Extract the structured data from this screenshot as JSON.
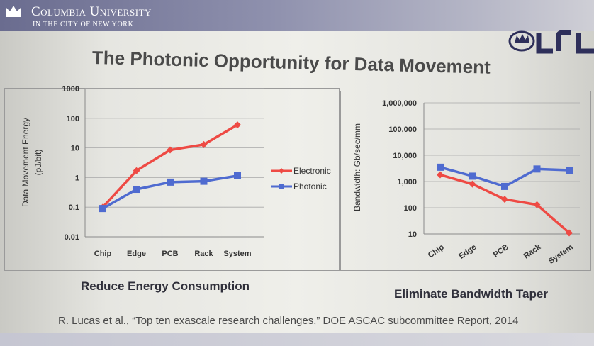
{
  "header": {
    "university": "Columbia University",
    "subtitle": "IN THE CITY OF NEW YORK",
    "lab_logo": "LRL"
  },
  "slide_title": "The Photonic Opportunity for Data Movement",
  "colors": {
    "electronic": "#ee4a44",
    "photonic": "#4f6bd0",
    "header_bar": "#7a7c9c"
  },
  "chart_data": [
    {
      "type": "line",
      "title": "",
      "xlabel": "",
      "ylabel": "Data Movement Energy (pJ/bit)",
      "log_scale_y": true,
      "ylim": [
        0.01,
        1000
      ],
      "y_ticks": [
        "1000",
        "100",
        "10",
        "1",
        "0.1",
        "0.01"
      ],
      "categories": [
        "Chip",
        "Edge",
        "PCB",
        "Rack",
        "System"
      ],
      "legend_position": "right",
      "grid": true,
      "series": [
        {
          "name": "Electronic",
          "color": "#ee4a44",
          "marker": "diamond",
          "values": [
            0.1,
            1.7,
            8.5,
            13,
            60
          ]
        },
        {
          "name": "Photonic",
          "color": "#4f6bd0",
          "marker": "square",
          "values": [
            0.09,
            0.4,
            0.7,
            0.75,
            1.15
          ]
        }
      ],
      "caption": "Reduce Energy Consumption"
    },
    {
      "type": "line",
      "title": "",
      "xlabel": "",
      "ylabel": "Bandwidth: Gb/sec/mm",
      "log_scale_y": true,
      "ylim": [
        10,
        1000000
      ],
      "y_ticks": [
        "1,000,000",
        "100,000",
        "10,000",
        "1,000",
        "100",
        "10"
      ],
      "categories": [
        "Chip",
        "Edge",
        "PCB",
        "Rack",
        "System"
      ],
      "grid": true,
      "series": [
        {
          "name": "Electronic",
          "color": "#ee4a44",
          "marker": "diamond",
          "values": [
            1800,
            800,
            210,
            130,
            11
          ]
        },
        {
          "name": "Photonic",
          "color": "#4f6bd0",
          "marker": "square",
          "values": [
            3500,
            1600,
            650,
            3000,
            2700
          ]
        }
      ],
      "caption": "Eliminate Bandwidth Taper"
    }
  ],
  "citation": "R. Lucas et al., “Top ten exascale research challenges,” DOE ASCAC subcommittee Report, 2014"
}
